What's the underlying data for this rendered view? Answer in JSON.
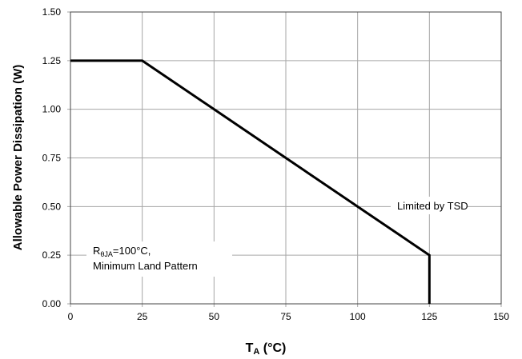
{
  "chart_data": {
    "type": "line",
    "xlabel": {
      "main": "T",
      "sub": "A",
      "unit": " (°C)"
    },
    "ylabel": "Allowable Power Dissipation (W)",
    "xlim": [
      0,
      150
    ],
    "ylim": [
      0,
      1.5
    ],
    "xticks": [
      "0",
      "25",
      "50",
      "75",
      "100",
      "125",
      "150"
    ],
    "yticks": [
      "0.00",
      "0.25",
      "0.50",
      "0.75",
      "1.00",
      "1.25",
      "1.50"
    ],
    "grid": true,
    "series": [
      {
        "x": [
          0,
          25,
          50,
          75,
          100,
          125,
          125
        ],
        "y": [
          1.25,
          1.25,
          1.0,
          0.75,
          0.5,
          0.25,
          0.0
        ]
      }
    ],
    "annotations": {
      "tsd": "Limited by TSD",
      "rth_main": "R",
      "rth_sub": "θJA",
      "rth_value": "=100°C,",
      "rth_line2": "Minimum Land Pattern"
    },
    "colors": {
      "line": "#000000",
      "grid": "#a6a6a6",
      "annotation_bg": "#ffffff"
    }
  }
}
